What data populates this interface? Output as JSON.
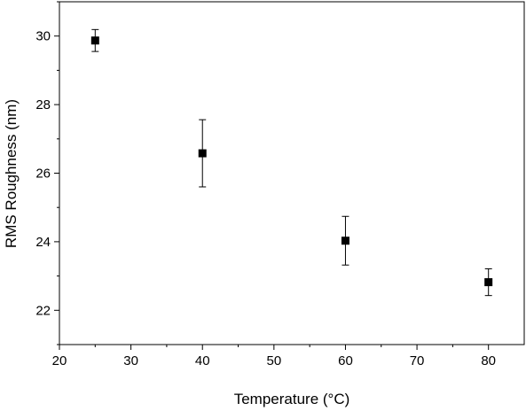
{
  "chart_data": {
    "type": "scatter",
    "title": "",
    "xlabel": "Temperature (°C)",
    "ylabel": "RMS Roughness (nm)",
    "xlim": [
      20,
      85
    ],
    "ylim": [
      21,
      31
    ],
    "xticks": [
      20,
      30,
      40,
      50,
      60,
      70,
      80
    ],
    "yticks": [
      22,
      24,
      26,
      28,
      30
    ],
    "grid": false,
    "legend": "none",
    "marker": "square",
    "color": "#000000",
    "series": [
      {
        "x": [
          25,
          40,
          60,
          80
        ],
        "y": [
          29.87,
          26.58,
          24.03,
          22.82
        ],
        "error": [
          0.32,
          0.98,
          0.71,
          0.39
        ]
      }
    ]
  }
}
